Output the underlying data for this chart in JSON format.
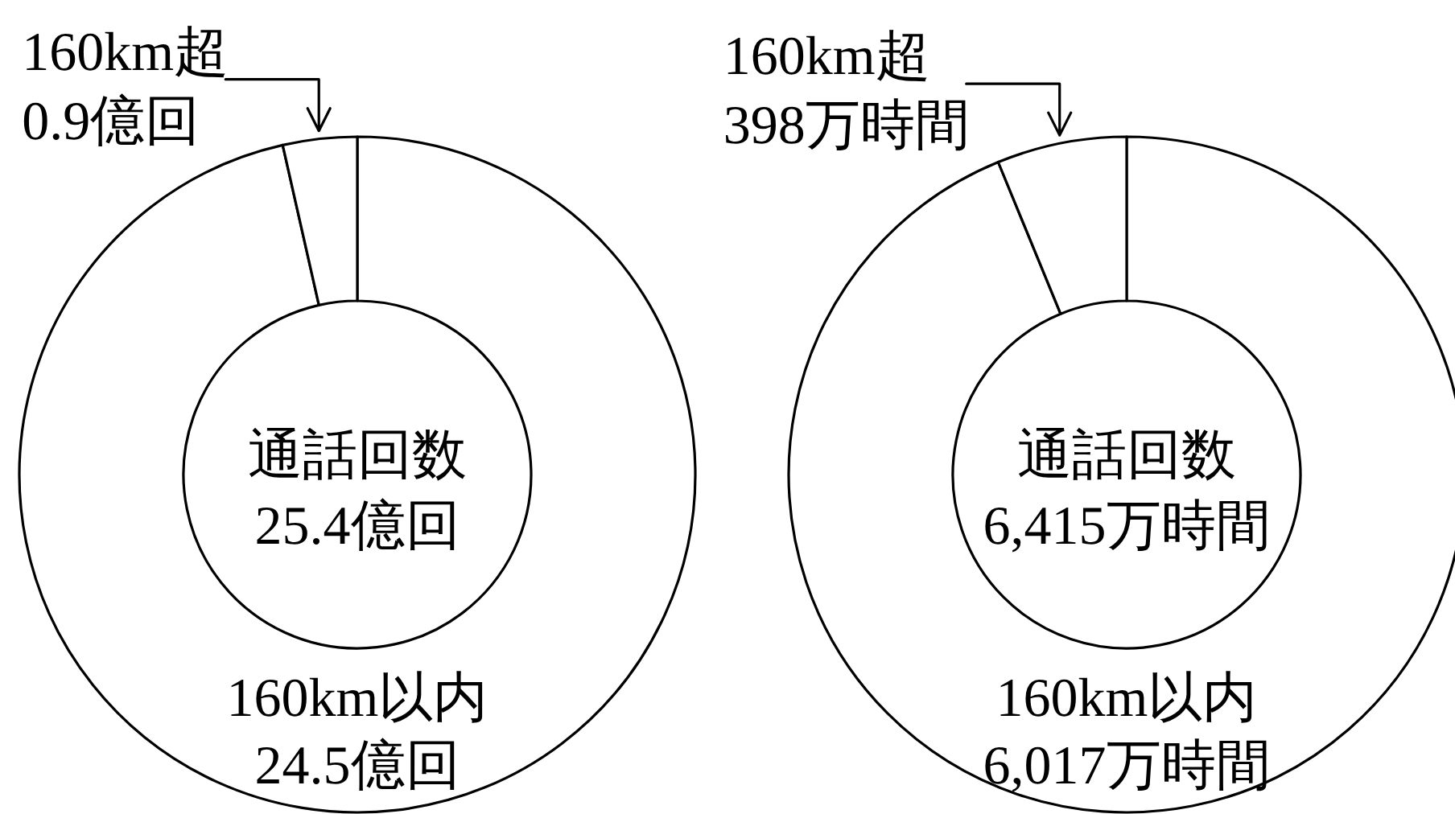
{
  "chart_data": [
    {
      "type": "donut",
      "title": "通話回数",
      "subtitle": "25.4億回",
      "categories": [
        "160km以内",
        "160km超"
      ],
      "values": [
        24.5,
        0.9
      ],
      "value_labels": [
        "24.5億回",
        "0.9億回"
      ],
      "colors": [
        "#ffffff",
        "#ffffff"
      ]
    },
    {
      "type": "donut",
      "title": "通話回数",
      "subtitle": "6,415万時間",
      "categories": [
        "160km以内",
        "160km超"
      ],
      "values": [
        6017,
        398
      ],
      "value_labels": [
        "6,017万時間",
        "398万時間"
      ],
      "colors": [
        "#ffffff",
        "#ffffff"
      ]
    }
  ]
}
